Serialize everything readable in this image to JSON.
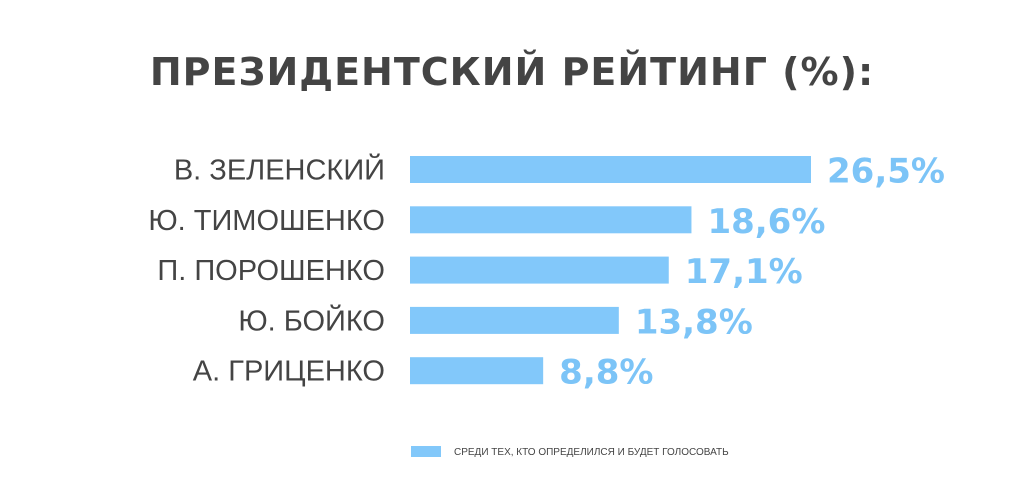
{
  "chart_data": {
    "type": "bar",
    "orientation": "horizontal",
    "title": "ПРЕЗИДЕНТСКИЙ РЕЙТИНГ (%):",
    "categories": [
      "В. ЗЕЛЕНСКИЙ",
      "Ю. ТИМОШЕНКО",
      "П. ПОРОШЕНКО",
      "Ю. БОЙКО",
      "А. ГРИЦЕНКО"
    ],
    "values": [
      26.5,
      18.6,
      17.1,
      13.8,
      8.8
    ],
    "value_labels": [
      "26,5%",
      "18,6%",
      "17,1%",
      "13,8%",
      "8,8%"
    ],
    "series": [
      {
        "name": "СРЕДИ ТЕХ, КТО ОПРЕДЕЛИЛСЯ И БУДЕТ ГОЛОСОВАТЬ",
        "values": [
          26.5,
          18.6,
          17.1,
          13.8,
          8.8
        ]
      }
    ],
    "xlim": [
      0,
      26.5
    ],
    "grid": false,
    "legend_position": "bottom",
    "colors": {
      "bar": "#82C8FA",
      "value_text": "#7CC4F7",
      "text": "#444444"
    }
  }
}
